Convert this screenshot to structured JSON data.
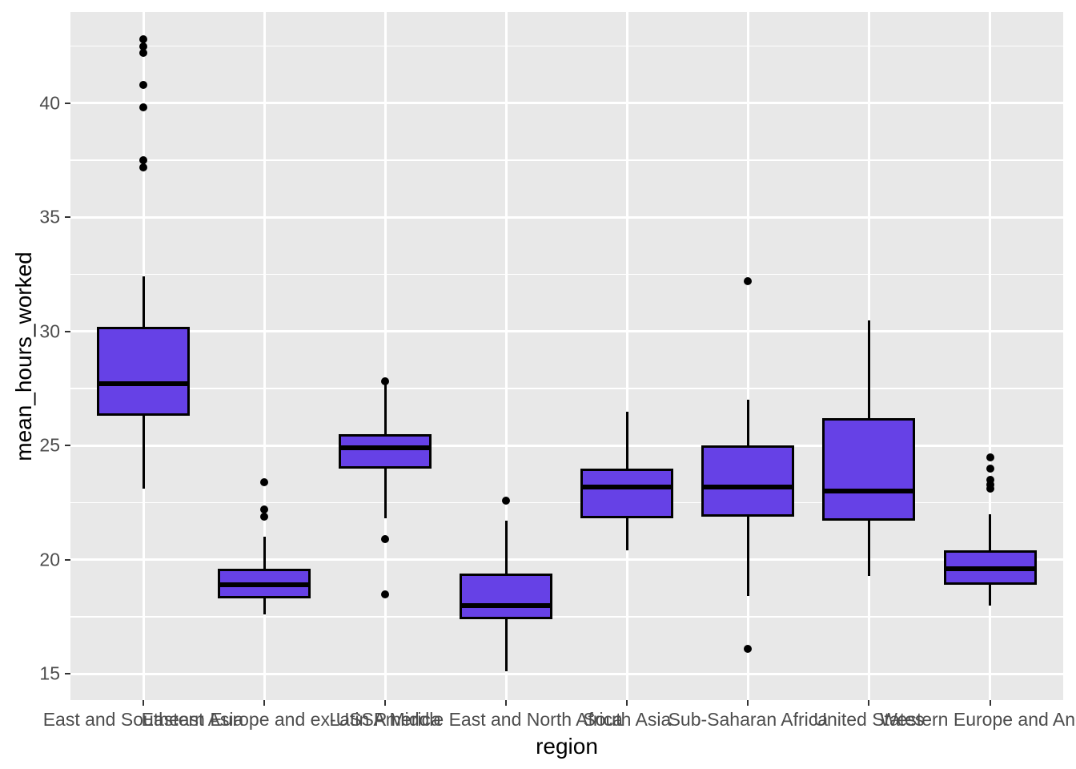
{
  "chart_data": {
    "type": "boxplot",
    "title": "",
    "xlabel": "region",
    "ylabel": "mean_hours_worked",
    "legend": "none",
    "grid": "major and minor horizontal white lines, major vertical white lines on grey panel",
    "y_axis": {
      "ticks": [
        15,
        20,
        25,
        30,
        35,
        40
      ],
      "minor_ticks": [
        17.5,
        22.5,
        27.5,
        32.5,
        37.5,
        42.5
      ],
      "range": [
        13.85,
        43.99
      ]
    },
    "categories": [
      "East and Southeast Asia",
      "Eastern Europe and ex-USSR",
      "Latin America",
      "Middle East and North Africa",
      "South Asia",
      "Sub-Saharan Africa",
      "United States",
      "Western Europe and Anglo"
    ],
    "series": [
      {
        "category": "East and Southeast Asia",
        "whisker_low": 23.1,
        "q1": 26.3,
        "median": 27.7,
        "q3": 30.2,
        "whisker_high": 32.4,
        "outliers": [
          42.8,
          42.5,
          42.2,
          40.8,
          39.8,
          37.5,
          37.2
        ]
      },
      {
        "category": "Eastern Europe and ex-USSR",
        "whisker_low": 17.6,
        "q1": 18.3,
        "median": 18.9,
        "q3": 19.6,
        "whisker_high": 21.0,
        "outliers": [
          23.4,
          22.2,
          21.9
        ]
      },
      {
        "category": "Latin America",
        "whisker_low": 21.8,
        "q1": 24.0,
        "median": 24.9,
        "q3": 25.5,
        "whisker_high": 27.7,
        "outliers": [
          27.8,
          20.9,
          18.5
        ]
      },
      {
        "category": "Middle East and North Africa",
        "whisker_low": 15.1,
        "q1": 17.4,
        "median": 18.0,
        "q3": 19.4,
        "whisker_high": 21.7,
        "outliers": [
          22.6
        ]
      },
      {
        "category": "South Asia",
        "whisker_low": 20.4,
        "q1": 21.8,
        "median": 23.2,
        "q3": 24.0,
        "whisker_high": 26.5,
        "outliers": []
      },
      {
        "category": "Sub-Saharan Africa",
        "whisker_low": 18.4,
        "q1": 21.9,
        "median": 23.2,
        "q3": 25.0,
        "whisker_high": 27.0,
        "outliers": [
          32.2,
          16.1
        ]
      },
      {
        "category": "United States",
        "whisker_low": 19.3,
        "q1": 21.7,
        "median": 23.0,
        "q3": 26.2,
        "whisker_high": 30.5,
        "outliers": []
      },
      {
        "category": "Western Europe and Anglo",
        "whisker_low": 18.0,
        "q1": 18.9,
        "median": 19.6,
        "q3": 20.4,
        "whisker_high": 22.0,
        "outliers": [
          24.5,
          24.0,
          23.5,
          23.3,
          23.1
        ]
      }
    ],
    "colors": {
      "box_fill": "#6641e6",
      "box_border": "#000000",
      "outlier": "#000000",
      "panel_background": "#e8e8e8",
      "gridline": "#ffffff",
      "tick_text": "#4d4d4d",
      "axis_title_text": "#000000"
    }
  }
}
